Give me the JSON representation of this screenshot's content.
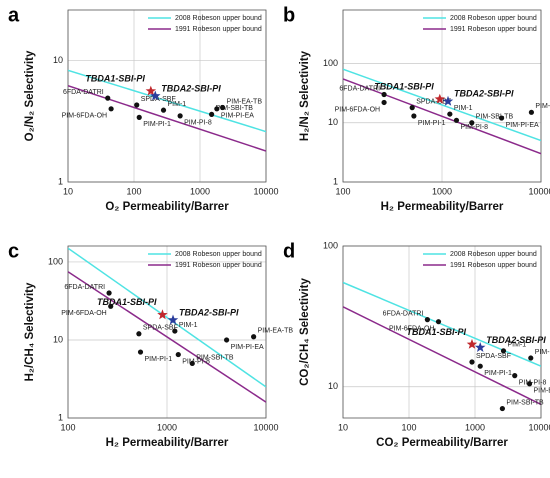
{
  "chart_data": [
    {
      "type": "scatter",
      "panel": "a",
      "x_label": "O₂ Permeability/Barrer",
      "y_label": "O₂/N₂ Selectivity",
      "log_x": true,
      "log_y": true,
      "grid": true,
      "xlim": [
        10,
        10000
      ],
      "xticks": [
        10,
        100,
        1000,
        10000
      ],
      "ylim": [
        1,
        26
      ],
      "yticks": [
        1,
        10
      ],
      "series": [
        {
          "name": "2008 Robeson upper bound",
          "color": "#4fe3e3",
          "x": [
            10,
            10000
          ],
          "values": [
            8.3,
            2.6
          ]
        },
        {
          "name": "1991 Robeson upper bound",
          "color": "#8b2a8b",
          "x": [
            10,
            10000
          ],
          "values": [
            6.2,
            1.8
          ]
        }
      ],
      "points": [
        {
          "label": "6FDA-DATRI",
          "x": 40,
          "y": 4.9
        },
        {
          "label": "PIM-6FDA-OH",
          "x": 45,
          "y": 4.0
        },
        {
          "label": "SPDA-SBF",
          "x": 110,
          "y": 4.3
        },
        {
          "label": "PIM-PI-1",
          "x": 120,
          "y": 3.4
        },
        {
          "label": "PIM-1",
          "x": 280,
          "y": 3.9
        },
        {
          "label": "PIM-PI-8",
          "x": 500,
          "y": 3.5
        },
        {
          "label": "PIM-SBI-TB",
          "x": 1500,
          "y": 3.6
        },
        {
          "label": "PIM-PI-EA",
          "x": 1800,
          "y": 4.0
        },
        {
          "label": "PIM-EA-TB",
          "x": 2200,
          "y": 4.1
        }
      ],
      "stars": [
        {
          "label": "TBDA1-SBI-PI",
          "x": 180,
          "y": 5.6,
          "color": "#c0282d"
        },
        {
          "label": "TBDA2-SBI-PI",
          "x": 210,
          "y": 5.1,
          "color": "#2a3d9c"
        }
      ]
    },
    {
      "type": "scatter",
      "panel": "b",
      "x_label": "H₂ Permeability/Barrer",
      "y_label": "H₂/N₂ Selectivity",
      "log_x": true,
      "log_y": true,
      "grid": true,
      "xlim": [
        100,
        10000
      ],
      "xticks": [
        100,
        1000,
        10000
      ],
      "ylim": [
        1,
        800
      ],
      "yticks": [
        1,
        10,
        100
      ],
      "series": [
        {
          "name": "2008 Robeson upper bound",
          "color": "#4fe3e3",
          "x": [
            100,
            10000
          ],
          "values": [
            80,
            5
          ]
        },
        {
          "name": "1991 Robeson upper bound",
          "color": "#8b2a8b",
          "x": [
            100,
            10000
          ],
          "values": [
            55,
            3
          ]
        }
      ],
      "points": [
        {
          "label": "6FDA-DATRI",
          "x": 260,
          "y": 30
        },
        {
          "label": "PIM-6FDA-OH",
          "x": 260,
          "y": 22
        },
        {
          "label": "SPDA-SBF",
          "x": 500,
          "y": 18
        },
        {
          "label": "PIM-PI-1",
          "x": 520,
          "y": 13
        },
        {
          "label": "PIM-1",
          "x": 1200,
          "y": 14
        },
        {
          "label": "PIM-PI-8",
          "x": 1400,
          "y": 11
        },
        {
          "label": "PIM-SBI-TB",
          "x": 2000,
          "y": 10
        },
        {
          "label": "PIM-PI-EA",
          "x": 4000,
          "y": 12
        },
        {
          "label": "PIM-EA-TB",
          "x": 8000,
          "y": 15
        }
      ],
      "stars": [
        {
          "label": "TBDA1-SBI-PI",
          "x": 950,
          "y": 25,
          "color": "#c0282d"
        },
        {
          "label": "TBDA2-SBI-PI",
          "x": 1150,
          "y": 23,
          "color": "#2a3d9c"
        }
      ]
    },
    {
      "type": "scatter",
      "panel": "c",
      "x_label": "H₂ Permeability/Barrer",
      "y_label": "H₂/CH₄ Selectivity",
      "log_x": true,
      "log_y": true,
      "grid": true,
      "xlim": [
        100,
        10000
      ],
      "xticks": [
        100,
        1000,
        10000
      ],
      "ylim": [
        1,
        160
      ],
      "yticks": [
        1,
        10,
        100
      ],
      "series": [
        {
          "name": "2008 Robeson upper bound",
          "color": "#4fe3e3",
          "x": [
            100,
            10000
          ],
          "values": [
            150,
            2.5
          ]
        },
        {
          "name": "1991 Robeson upper bound",
          "color": "#8b2a8b",
          "x": [
            100,
            10000
          ],
          "values": [
            75,
            1.6
          ]
        }
      ],
      "points": [
        {
          "label": "6FDA-DATRI",
          "x": 260,
          "y": 40
        },
        {
          "label": "PIM-6FDA-OH",
          "x": 270,
          "y": 27
        },
        {
          "label": "SPDA-SBF",
          "x": 520,
          "y": 12
        },
        {
          "label": "PIM-PI-1",
          "x": 540,
          "y": 7
        },
        {
          "label": "PIM-1",
          "x": 1200,
          "y": 13
        },
        {
          "label": "PIM-PI-8",
          "x": 1300,
          "y": 6.5
        },
        {
          "label": "PIM-SBI-TB",
          "x": 1800,
          "y": 5
        },
        {
          "label": "PIM-PI-EA",
          "x": 4000,
          "y": 10
        },
        {
          "label": "PIM-EA-TB",
          "x": 7500,
          "y": 11
        }
      ],
      "stars": [
        {
          "label": "TBDA1-SBI-PI",
          "x": 900,
          "y": 21,
          "color": "#c0282d"
        },
        {
          "label": "TBDA2-SBI-PI",
          "x": 1150,
          "y": 18,
          "color": "#2a3d9c"
        }
      ]
    },
    {
      "type": "scatter",
      "panel": "d",
      "x_label": "CO₂ Permeability/Barrer",
      "y_label": "CO₂/CH₄ Selectivity",
      "log_x": true,
      "log_y": true,
      "grid": true,
      "xlim": [
        10,
        10000
      ],
      "xticks": [
        10,
        100,
        1000,
        10000
      ],
      "ylim": [
        6,
        100
      ],
      "yticks": [
        10,
        100
      ],
      "series": [
        {
          "name": "2008 Robeson upper bound",
          "color": "#4fe3e3",
          "x": [
            10,
            10000
          ],
          "values": [
            55,
            14
          ]
        },
        {
          "name": "1991 Robeson upper bound",
          "color": "#8b2a8b",
          "x": [
            10,
            10000
          ],
          "values": [
            37,
            7.5
          ]
        }
      ],
      "points": [
        {
          "label": "6FDA-DATRI",
          "x": 190,
          "y": 30
        },
        {
          "label": "PIM-6FDA-OH",
          "x": 280,
          "y": 29
        },
        {
          "label": "SPDA-SBF",
          "x": 900,
          "y": 15
        },
        {
          "label": "PIM-PI-1",
          "x": 1200,
          "y": 14
        },
        {
          "label": "PIM-1",
          "x": 2700,
          "y": 18
        },
        {
          "label": "PIM-PI-8",
          "x": 4000,
          "y": 12
        },
        {
          "label": "PIM-PI-EA",
          "x": 7000,
          "y": 16
        },
        {
          "label": "PIM-EA-TB",
          "x": 6700,
          "y": 10.5
        },
        {
          "label": "PIM-SBI-TB",
          "x": 2600,
          "y": 7
        }
      ],
      "stars": [
        {
          "label": "TBDA1-SBI-PI",
          "x": 900,
          "y": 20,
          "color": "#c0282d"
        },
        {
          "label": "TBDA2-SBI-PI",
          "x": 1200,
          "y": 19,
          "color": "#2a3d9c"
        }
      ]
    }
  ]
}
